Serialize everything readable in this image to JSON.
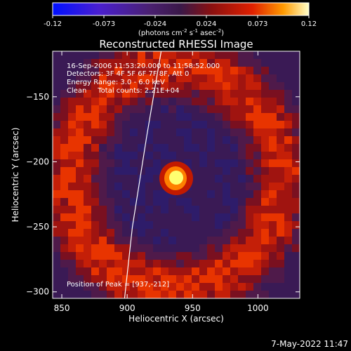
{
  "chart_data": {
    "type": "heatmap",
    "title": "Reconstructed RHESSI Image",
    "xlabel": "Heliocentric X (arcsec)",
    "ylabel": "Heliocentric Y (arcsec)",
    "xlim": [
      843,
      1032
    ],
    "ylim": [
      -305,
      -115
    ],
    "x_ticks": [
      850,
      900,
      950,
      1000
    ],
    "y_ticks": [
      -150,
      -200,
      -250,
      -300
    ],
    "colorbar": {
      "min": -0.12,
      "max": 0.12,
      "ticks": [
        "-0.12",
        "-0.073",
        "-0.024",
        "0.024",
        "0.073",
        "0.12"
      ],
      "unit": "(photons cm",
      "unit_exp1": "-2",
      "unit_mid": " s",
      "unit_exp2": "-1",
      "unit_tail": " asec",
      "unit_exp3": "-2",
      "unit_close": ")"
    },
    "annotations": [
      "16-Sep-2006 11:53:20.000 to 11:58:52.000",
      "Detectors: 3F 4F 5F 6F 7F 8F, Att 0",
      "Energy Range: 3.0 - 6.0 keV",
      "Clean     Total counts: 2.21E+04"
    ],
    "peak_label": "Position of Peak = [937,-212]",
    "peak": [
      937,
      -212
    ],
    "peak_value": 0.12,
    "limb_curve": [
      [
        926,
        -115
      ],
      [
        915,
        -180
      ],
      [
        904,
        -250
      ],
      [
        898,
        -305
      ]
    ],
    "timestamp": "7-May-2022 11:47"
  }
}
